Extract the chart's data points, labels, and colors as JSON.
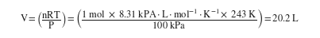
{
  "formula": "$\\mathrm{V} = \\left(\\dfrac{\\mathrm{nRT}}{\\mathrm{P}}\\right) = \\left(\\dfrac{\\mathrm{1\\ mol\\ \\times\\ 8.31\\ kPA \\cdot L \\cdot mol^{-1} \\cdot K^{-1} \\times\\ 243\\ K}}{\\mathrm{100\\ kPa}}\\right) = \\mathrm{20.2\\ L}$",
  "background_color": "#ffffff",
  "text_color": "#1a1a1a",
  "fontsize": 9.0,
  "figwidth": 4.03,
  "figheight": 0.48,
  "dpi": 100
}
